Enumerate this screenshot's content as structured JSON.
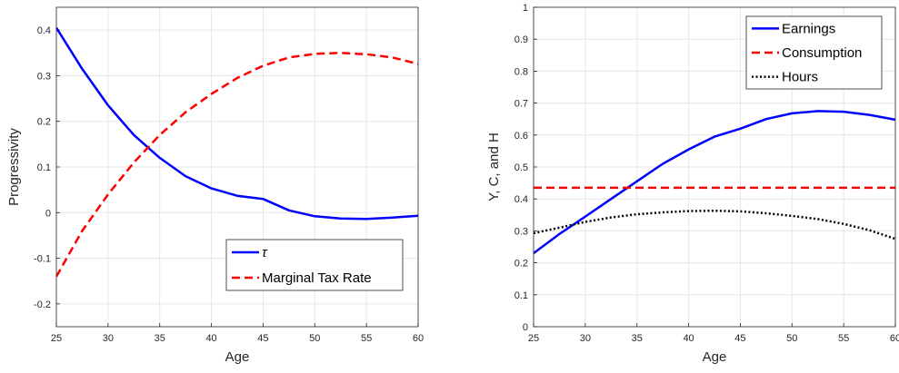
{
  "chart_data": [
    {
      "type": "line",
      "xlabel": "Age",
      "ylabel": "Progressivity",
      "xlim": [
        25,
        60
      ],
      "ylim": [
        -0.25,
        0.45
      ],
      "xticks": [
        "25",
        "30",
        "35",
        "40",
        "45",
        "50",
        "55",
        "60"
      ],
      "yticks": [
        "-0.2",
        "-0.1",
        "0",
        "0.1",
        "0.2",
        "0.3",
        "0.4"
      ],
      "grid": true,
      "legend_position": "bottom-right",
      "series": [
        {
          "name": "τ",
          "color": "#0000ff",
          "dash": "solid",
          "x": [
            25,
            27.5,
            30,
            32.5,
            35,
            37.5,
            40,
            42.5,
            45,
            47.5,
            50,
            52.5,
            55,
            57.5,
            60
          ],
          "y": [
            0.405,
            0.315,
            0.235,
            0.17,
            0.12,
            0.08,
            0.053,
            0.037,
            0.03,
            0.005,
            -0.008,
            -0.013,
            -0.014,
            -0.011,
            -0.007
          ]
        },
        {
          "name": "Marginal Tax Rate",
          "color": "#ff0000",
          "dash": "dashed",
          "x": [
            25,
            27.5,
            30,
            32.5,
            35,
            37.5,
            40,
            42.5,
            45,
            47.5,
            50,
            52.5,
            55,
            57.5,
            60
          ],
          "y": [
            -0.14,
            -0.04,
            0.04,
            0.11,
            0.17,
            0.22,
            0.26,
            0.295,
            0.322,
            0.34,
            0.348,
            0.35,
            0.347,
            0.34,
            0.326
          ]
        }
      ]
    },
    {
      "type": "line",
      "xlabel": "Age",
      "ylabel": "Y, C, and H",
      "xlim": [
        25,
        60
      ],
      "ylim": [
        0,
        1
      ],
      "xticks": [
        "25",
        "30",
        "35",
        "40",
        "45",
        "50",
        "55",
        "60"
      ],
      "yticks": [
        "0",
        "0.1",
        "0.2",
        "0.3",
        "0.4",
        "0.5",
        "0.6",
        "0.7",
        "0.8",
        "0.9",
        "1"
      ],
      "grid": true,
      "legend_position": "top-right",
      "series": [
        {
          "name": "Earnings",
          "color": "#0000ff",
          "dash": "solid",
          "x": [
            25,
            27.5,
            30,
            32.5,
            35,
            37.5,
            40,
            42.5,
            45,
            47.5,
            50,
            52.5,
            55,
            57.5,
            60
          ],
          "y": [
            0.23,
            0.29,
            0.345,
            0.4,
            0.455,
            0.51,
            0.555,
            0.595,
            0.62,
            0.65,
            0.668,
            0.675,
            0.673,
            0.663,
            0.648
          ]
        },
        {
          "name": "Consumption",
          "color": "#ff0000",
          "dash": "dashed",
          "x": [
            25,
            60
          ],
          "y": [
            0.435,
            0.435
          ]
        },
        {
          "name": "Hours",
          "color": "#000000",
          "dash": "dotted",
          "x": [
            25,
            27.5,
            30,
            32.5,
            35,
            37.5,
            40,
            42.5,
            45,
            47.5,
            50,
            52.5,
            55,
            57.5,
            60
          ],
          "y": [
            0.293,
            0.31,
            0.328,
            0.342,
            0.352,
            0.358,
            0.362,
            0.363,
            0.361,
            0.355,
            0.347,
            0.337,
            0.322,
            0.302,
            0.275
          ]
        }
      ]
    }
  ]
}
